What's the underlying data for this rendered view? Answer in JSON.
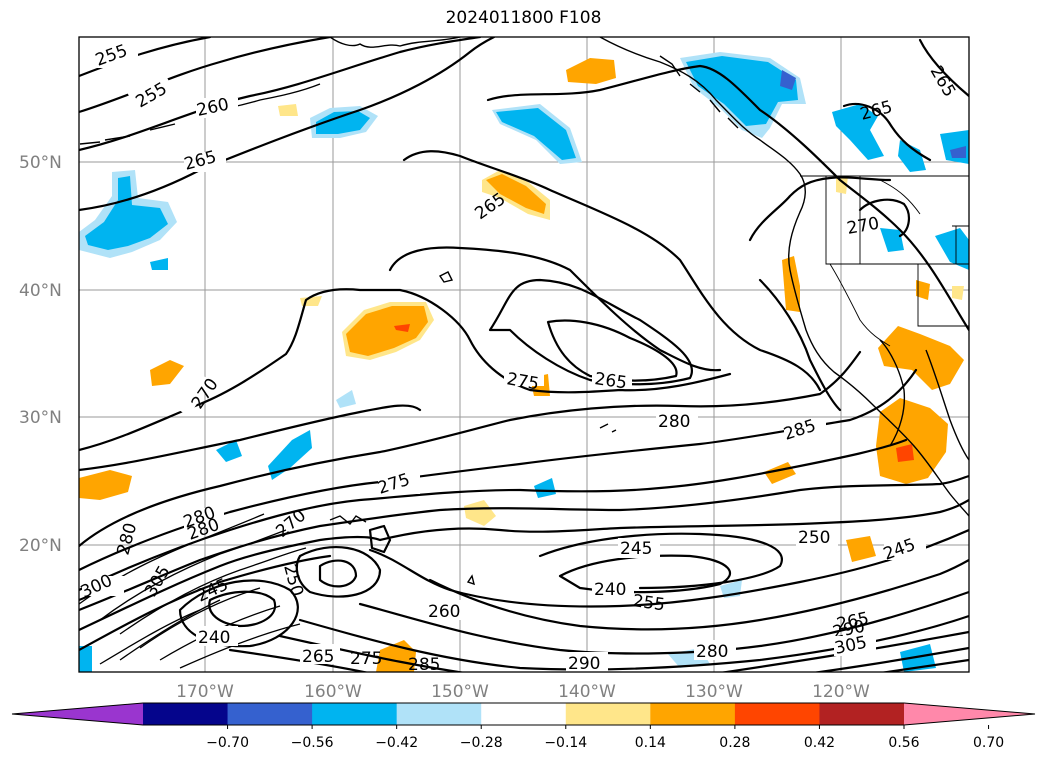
{
  "title": "2024011800 F108",
  "map": {
    "lat_labels": [
      "50°N",
      "40°N",
      "30°N",
      "20°N"
    ],
    "lon_labels": [
      "170°W",
      "160°W",
      "150°W",
      "140°W",
      "130°W",
      "120°W"
    ],
    "contour_labels": [
      "255",
      "255",
      "260",
      "265",
      "265",
      "265",
      "265",
      "270",
      "270",
      "275",
      "265",
      "280",
      "285",
      "275",
      "280",
      "280",
      "280",
      "270",
      "250",
      "305",
      "300",
      "245",
      "240",
      "260",
      "245",
      "240",
      "255",
      "250",
      "245",
      "280",
      "290",
      "265",
      "275",
      "285",
      "290",
      "305",
      "265"
    ]
  },
  "colorbar": {
    "tick_labels": [
      "−0.70",
      "−0.56",
      "−0.42",
      "−0.28",
      "−0.14",
      "0.14",
      "0.28",
      "0.42",
      "0.56",
      "0.70"
    ],
    "colors": [
      "#9a35cf",
      "#05058c",
      "#3561cf",
      "#00b4f0",
      "#b0e2f8",
      "#ffffff",
      "#ffe68a",
      "#ffa500",
      "#ff4500",
      "#b22222",
      "#ff88aa"
    ]
  }
}
